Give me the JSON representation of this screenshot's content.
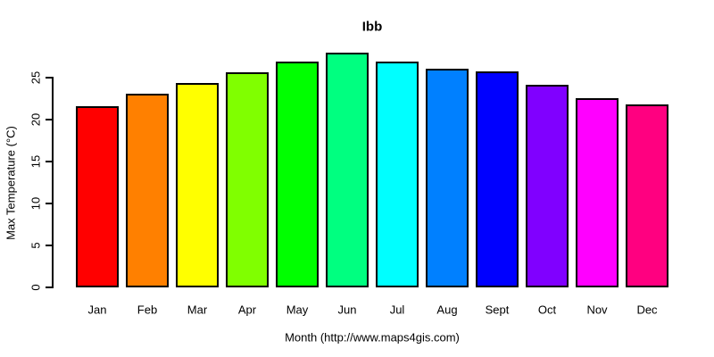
{
  "chart_data": {
    "type": "bar",
    "title": "Ibb",
    "xlabel": "Month (http://www.maps4gis.com)",
    "ylabel": "Max Temperature (°C)",
    "categories": [
      "Jan",
      "Feb",
      "Mar",
      "Apr",
      "May",
      "Jun",
      "Jul",
      "Aug",
      "Sept",
      "Oct",
      "Nov",
      "Dec"
    ],
    "values": [
      21.6,
      23.1,
      24.4,
      25.6,
      26.9,
      28.0,
      26.9,
      26.1,
      25.7,
      24.1,
      22.5,
      21.8
    ],
    "bar_colors": [
      "#FF0000",
      "#FF8000",
      "#FFFF00",
      "#80FF00",
      "#00FF00",
      "#00FF80",
      "#00FFFF",
      "#0080FF",
      "#0000FF",
      "#8000FF",
      "#FF00FF",
      "#FF0080"
    ],
    "yticks": [
      0,
      5,
      10,
      15,
      20,
      25
    ],
    "ylim": [
      0,
      28.5
    ],
    "grid": false,
    "legend": "none",
    "axis_color": "#000000",
    "background": "#FFFFFF",
    "bar_border_color": "#000000"
  }
}
